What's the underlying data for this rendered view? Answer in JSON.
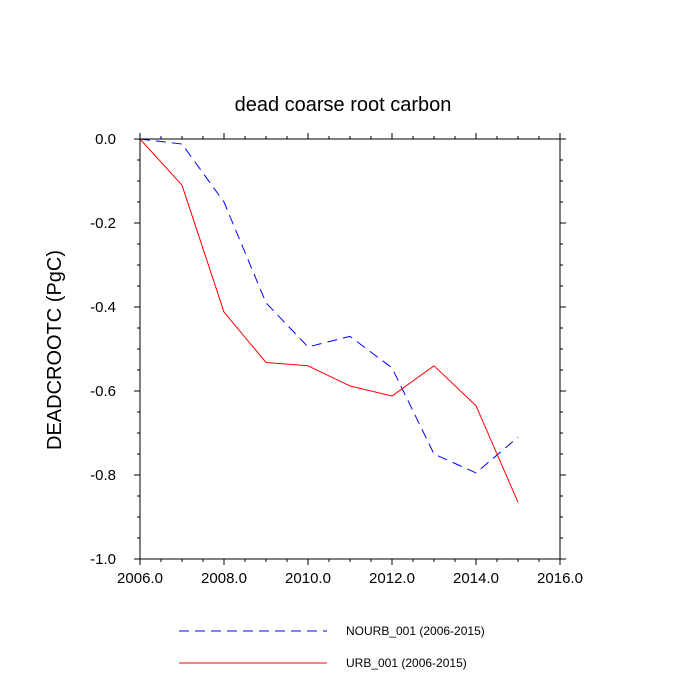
{
  "chart_data": {
    "type": "line",
    "title": "dead coarse root carbon",
    "xlabel": "",
    "ylabel": "DEADCROOTC  (PgC)",
    "xlim": [
      2006,
      2016
    ],
    "ylim": [
      -1.0,
      0.0
    ],
    "x_ticks": [
      "2006.0",
      "2008.0",
      "2010.0",
      "2012.0",
      "2014.0",
      "2016.0"
    ],
    "y_ticks": [
      "0.0",
      "-0.2",
      "-0.4",
      "-0.6",
      "-0.8",
      "-1.0"
    ],
    "grid": false,
    "legend_position": "bottom",
    "x": [
      2006,
      2007,
      2008,
      2009,
      2010,
      2011,
      2012,
      2013,
      2014,
      2015
    ],
    "series": [
      {
        "name": "NOURB_001 (2006-2015)",
        "color": "#0000ff",
        "style": "dashed",
        "values": [
          0.0,
          -0.012,
          -0.15,
          -0.39,
          -0.495,
          -0.47,
          -0.545,
          -0.75,
          -0.795,
          -0.71
        ]
      },
      {
        "name": "URB_001 (2006-2015)",
        "color": "#ff0000",
        "style": "solid",
        "values": [
          0.0,
          -0.11,
          -0.412,
          -0.532,
          -0.54,
          -0.588,
          -0.612,
          -0.54,
          -0.635,
          -0.865
        ]
      }
    ]
  }
}
